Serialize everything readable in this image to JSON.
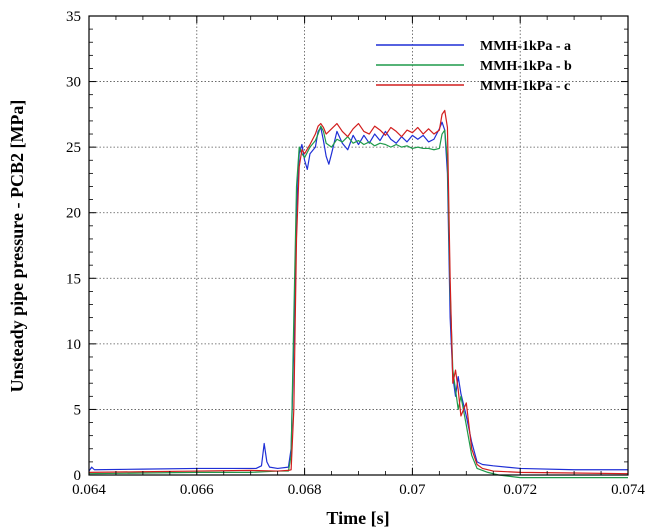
{
  "chart_data": {
    "type": "line",
    "title": "",
    "xlabel": "Time [s]",
    "ylabel": "Unsteady pipe pressure - PCB2 [MPa]",
    "xlim": [
      0.064,
      0.074
    ],
    "ylim": [
      0,
      35
    ],
    "xticks": [
      0.064,
      0.066,
      0.068,
      0.07,
      0.072,
      0.074
    ],
    "xtick_labels": [
      "0.064",
      "0.066",
      "0.068",
      "0.07",
      "0.072",
      "0.074"
    ],
    "yticks": [
      0,
      5,
      10,
      15,
      20,
      25,
      30,
      35
    ],
    "ytick_labels": [
      "0",
      "5",
      "10",
      "15",
      "20",
      "25",
      "30",
      "35"
    ],
    "grid": true,
    "legend_position": "top-right",
    "series": [
      {
        "name": "MMH-1kPa - a",
        "color": "#1f2fd6",
        "points": [
          [
            0.064,
            0.3
          ],
          [
            0.06405,
            0.6
          ],
          [
            0.0641,
            0.4
          ],
          [
            0.065,
            0.45
          ],
          [
            0.066,
            0.5
          ],
          [
            0.0671,
            0.5
          ],
          [
            0.0672,
            0.7
          ],
          [
            0.06725,
            2.4
          ],
          [
            0.0673,
            1.0
          ],
          [
            0.06735,
            0.6
          ],
          [
            0.0675,
            0.5
          ],
          [
            0.0677,
            0.6
          ],
          [
            0.06775,
            2.0
          ],
          [
            0.0678,
            10.0
          ],
          [
            0.06785,
            20.0
          ],
          [
            0.0679,
            24.5
          ],
          [
            0.06795,
            25.2
          ],
          [
            0.068,
            24.0
          ],
          [
            0.06805,
            23.3
          ],
          [
            0.0681,
            24.5
          ],
          [
            0.0682,
            25.0
          ],
          [
            0.06825,
            26.2
          ],
          [
            0.0683,
            26.5
          ],
          [
            0.06835,
            25.5
          ],
          [
            0.0684,
            24.3
          ],
          [
            0.06845,
            23.7
          ],
          [
            0.0685,
            24.5
          ],
          [
            0.0686,
            26.2
          ],
          [
            0.0687,
            25.3
          ],
          [
            0.0688,
            24.8
          ],
          [
            0.0689,
            25.9
          ],
          [
            0.069,
            25.2
          ],
          [
            0.0691,
            25.9
          ],
          [
            0.0692,
            25.3
          ],
          [
            0.0693,
            26.0
          ],
          [
            0.0694,
            25.5
          ],
          [
            0.0695,
            26.2
          ],
          [
            0.0696,
            25.6
          ],
          [
            0.0697,
            25.3
          ],
          [
            0.0698,
            25.8
          ],
          [
            0.0699,
            25.4
          ],
          [
            0.07,
            25.9
          ],
          [
            0.0701,
            25.6
          ],
          [
            0.0702,
            25.9
          ],
          [
            0.0703,
            25.4
          ],
          [
            0.0704,
            25.6
          ],
          [
            0.0705,
            26.4
          ],
          [
            0.07055,
            26.9
          ],
          [
            0.0706,
            26.3
          ],
          [
            0.07065,
            23.0
          ],
          [
            0.0707,
            12.0
          ],
          [
            0.07075,
            7.5
          ],
          [
            0.0708,
            6.0
          ],
          [
            0.07085,
            7.5
          ],
          [
            0.0709,
            6.2
          ],
          [
            0.071,
            4.5
          ],
          [
            0.0711,
            2.5
          ],
          [
            0.0712,
            1.0
          ],
          [
            0.0713,
            0.8
          ],
          [
            0.0715,
            0.7
          ],
          [
            0.072,
            0.5
          ],
          [
            0.073,
            0.4
          ],
          [
            0.074,
            0.4
          ]
        ]
      },
      {
        "name": "MMH-1kPa - b",
        "color": "#1f9a4a",
        "points": [
          [
            0.064,
            0.1
          ],
          [
            0.065,
            0.15
          ],
          [
            0.066,
            0.2
          ],
          [
            0.067,
            0.2
          ],
          [
            0.0675,
            0.3
          ],
          [
            0.0677,
            0.3
          ],
          [
            0.06775,
            1.5
          ],
          [
            0.0678,
            12.0
          ],
          [
            0.06785,
            22.0
          ],
          [
            0.0679,
            25.0
          ],
          [
            0.06795,
            24.5
          ],
          [
            0.068,
            24.2
          ],
          [
            0.0681,
            25.0
          ],
          [
            0.0682,
            25.5
          ],
          [
            0.06825,
            26.0
          ],
          [
            0.0683,
            26.6
          ],
          [
            0.06835,
            26.2
          ],
          [
            0.0684,
            25.3
          ],
          [
            0.0685,
            25.0
          ],
          [
            0.0686,
            25.6
          ],
          [
            0.0687,
            25.4
          ],
          [
            0.0688,
            25.8
          ],
          [
            0.0689,
            25.3
          ],
          [
            0.069,
            25.5
          ],
          [
            0.0691,
            25.2
          ],
          [
            0.0692,
            25.4
          ],
          [
            0.0693,
            25.1
          ],
          [
            0.0694,
            25.3
          ],
          [
            0.0695,
            25.2
          ],
          [
            0.0696,
            25.0
          ],
          [
            0.0697,
            25.2
          ],
          [
            0.0698,
            25.0
          ],
          [
            0.0699,
            25.1
          ],
          [
            0.07,
            24.9
          ],
          [
            0.0701,
            25.0
          ],
          [
            0.0702,
            24.9
          ],
          [
            0.0703,
            24.9
          ],
          [
            0.0704,
            24.8
          ],
          [
            0.0705,
            24.9
          ],
          [
            0.07055,
            26.0
          ],
          [
            0.0706,
            26.3
          ],
          [
            0.07065,
            24.0
          ],
          [
            0.0707,
            14.0
          ],
          [
            0.07075,
            8.0
          ],
          [
            0.0708,
            6.5
          ],
          [
            0.07085,
            5.0
          ],
          [
            0.0709,
            6.0
          ],
          [
            0.071,
            3.8
          ],
          [
            0.0711,
            1.5
          ],
          [
            0.0712,
            0.5
          ],
          [
            0.0714,
            0.2
          ],
          [
            0.0716,
            0.0
          ],
          [
            0.072,
            -0.2
          ],
          [
            0.073,
            -0.2
          ],
          [
            0.074,
            -0.2
          ]
        ]
      },
      {
        "name": "MMH-1kPa - c",
        "color": "#d21e1e",
        "points": [
          [
            0.064,
            0.2
          ],
          [
            0.065,
            0.25
          ],
          [
            0.066,
            0.3
          ],
          [
            0.067,
            0.35
          ],
          [
            0.0675,
            0.3
          ],
          [
            0.0677,
            0.35
          ],
          [
            0.06775,
            0.4
          ],
          [
            0.0678,
            5.0
          ],
          [
            0.06785,
            18.0
          ],
          [
            0.0679,
            23.5
          ],
          [
            0.06795,
            24.8
          ],
          [
            0.068,
            24.5
          ],
          [
            0.0681,
            25.2
          ],
          [
            0.0682,
            26.0
          ],
          [
            0.06825,
            26.6
          ],
          [
            0.0683,
            26.8
          ],
          [
            0.06835,
            26.5
          ],
          [
            0.0684,
            26.0
          ],
          [
            0.0685,
            26.4
          ],
          [
            0.0686,
            26.8
          ],
          [
            0.0687,
            26.2
          ],
          [
            0.0688,
            25.8
          ],
          [
            0.0689,
            26.4
          ],
          [
            0.069,
            26.8
          ],
          [
            0.0691,
            26.2
          ],
          [
            0.0692,
            26.0
          ],
          [
            0.0693,
            26.6
          ],
          [
            0.0694,
            26.3
          ],
          [
            0.0695,
            25.9
          ],
          [
            0.0696,
            26.5
          ],
          [
            0.0697,
            26.2
          ],
          [
            0.0698,
            25.8
          ],
          [
            0.0699,
            26.3
          ],
          [
            0.07,
            26.1
          ],
          [
            0.0701,
            26.5
          ],
          [
            0.0702,
            26.0
          ],
          [
            0.0703,
            26.4
          ],
          [
            0.0704,
            26.0
          ],
          [
            0.0705,
            26.3
          ],
          [
            0.07055,
            27.5
          ],
          [
            0.0706,
            27.8
          ],
          [
            0.07065,
            26.5
          ],
          [
            0.0707,
            15.0
          ],
          [
            0.07075,
            7.0
          ],
          [
            0.0708,
            8.0
          ],
          [
            0.07085,
            6.5
          ],
          [
            0.0709,
            4.5
          ],
          [
            0.071,
            5.5
          ],
          [
            0.0711,
            2.0
          ],
          [
            0.0712,
            0.8
          ],
          [
            0.0713,
            0.5
          ],
          [
            0.0715,
            0.3
          ],
          [
            0.072,
            0.2
          ],
          [
            0.073,
            0.15
          ],
          [
            0.074,
            0.1
          ]
        ]
      }
    ]
  }
}
